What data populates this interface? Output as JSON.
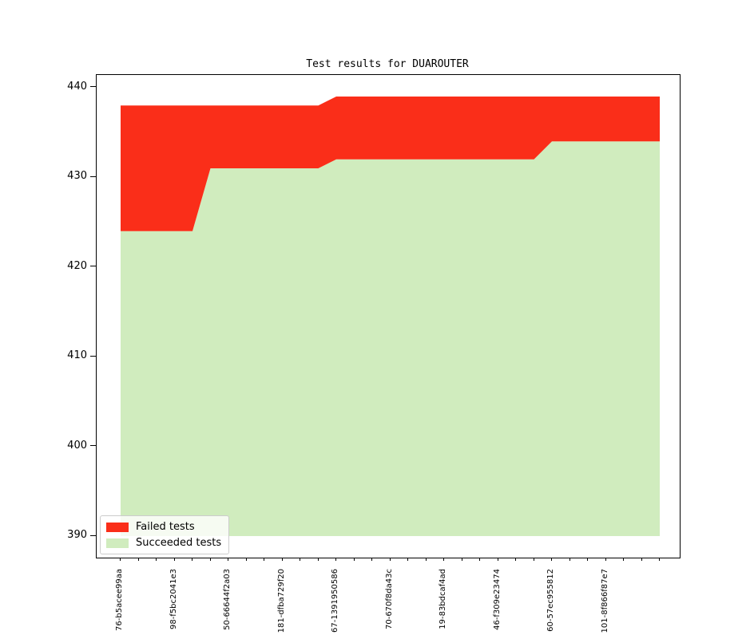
{
  "figure": {
    "title": "Test results for DUAROUTER"
  },
  "colors": {
    "failed": "#fa2e19",
    "succeeded": "#d0ecbe",
    "axis": "#000000",
    "legend_border": "#cccccc"
  },
  "legend": {
    "items": [
      {
        "key": "failed",
        "label": "Failed tests",
        "color": "#fa2e19"
      },
      {
        "key": "succeeded",
        "label": "Succeeded tests",
        "color": "#d0ecbe"
      }
    ]
  },
  "chart_data": {
    "type": "area",
    "stacked": true,
    "title": "Test results for DUAROUTER",
    "xlabel": "",
    "ylabel": "",
    "grid": false,
    "legend_position": "lower left",
    "baseline": 390,
    "ylim": [
      387.6,
      441.4
    ],
    "yticks": [
      390,
      400,
      410,
      420,
      430,
      440
    ],
    "n_points": 31,
    "x_labeled_ticks": [
      {
        "index": 0,
        "label": "76-b5acee99aa"
      },
      {
        "index": 3,
        "label": "98-f5bc2041e3"
      },
      {
        "index": 6,
        "label": "50-66644f2a03"
      },
      {
        "index": 9,
        "label": "181-dfba729f20"
      },
      {
        "index": 12,
        "label": "67-1391950586"
      },
      {
        "index": 15,
        "label": "70-670f8da43c"
      },
      {
        "index": 18,
        "label": "19-83bdcaf4ad"
      },
      {
        "index": 21,
        "label": "46-f309e23474"
      },
      {
        "index": 24,
        "label": "60-57ec955812"
      },
      {
        "index": 27,
        "label": "101-8f866f87e7"
      }
    ],
    "series": [
      {
        "name": "Succeeded tests",
        "color": "#d0ecbe",
        "values": [
          424,
          424,
          424,
          424,
          424,
          431,
          431,
          431,
          431,
          431,
          431,
          431,
          432,
          432,
          432,
          432,
          432,
          432,
          432,
          432,
          432,
          432,
          432,
          432,
          434,
          434,
          434,
          434,
          434,
          434,
          434
        ]
      },
      {
        "name": "Failed tests",
        "color": "#fa2e19",
        "values": [
          14,
          14,
          14,
          14,
          14,
          7,
          7,
          7,
          7,
          7,
          7,
          7,
          7,
          7,
          7,
          7,
          7,
          7,
          7,
          7,
          7,
          7,
          7,
          7,
          5,
          5,
          5,
          5,
          5,
          5,
          5
        ]
      }
    ],
    "totals": [
      438,
      438,
      438,
      438,
      438,
      438,
      438,
      438,
      438,
      438,
      438,
      438,
      439,
      439,
      439,
      439,
      439,
      439,
      439,
      439,
      439,
      439,
      439,
      439,
      439,
      439,
      439,
      439,
      439,
      439,
      439
    ]
  }
}
